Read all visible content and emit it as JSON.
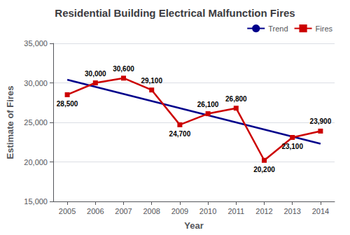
{
  "chart_data": {
    "type": "line",
    "title": "Residential Building Electrical Malfunction Fires",
    "x_label": "Year",
    "y_label": "Estimate of Fires",
    "series": [
      {
        "name": "Trend",
        "color": "#00008B",
        "line_style": "solid",
        "x": [
          2005,
          2014
        ],
        "values": [
          30400,
          22300
        ]
      },
      {
        "name": "Fires",
        "color": "#CC0000",
        "marker": "square",
        "line_style": "solid",
        "x": [
          2005,
          2006,
          2007,
          2008,
          2009,
          2010,
          2011,
          2012,
          2013,
          2014
        ],
        "values": [
          28500,
          30000,
          30600,
          29100,
          24700,
          26100,
          26800,
          20200,
          23100,
          23900
        ],
        "data_labels": true,
        "value_labels": [
          "28,500",
          "30,000",
          "30,600",
          "29,100",
          "24,700",
          "26,100",
          "26,800",
          "20,200",
          "23,100",
          "23,900"
        ]
      }
    ],
    "xlim": [
      2004.5,
      2014.5
    ],
    "xticks": [
      2005,
      2006,
      2007,
      2008,
      2009,
      2010,
      2011,
      2012,
      2013,
      2014
    ],
    "ylim": [
      15000,
      35000
    ],
    "yticks": [
      {
        "value": 15000,
        "label": "15,000"
      },
      {
        "value": 20000,
        "label": "20,000"
      },
      {
        "value": 25000,
        "label": "25,000"
      },
      {
        "value": 30000,
        "label": "30,000"
      },
      {
        "value": 35000,
        "label": "35,000"
      }
    ],
    "grid": true,
    "legend": "upper right"
  }
}
